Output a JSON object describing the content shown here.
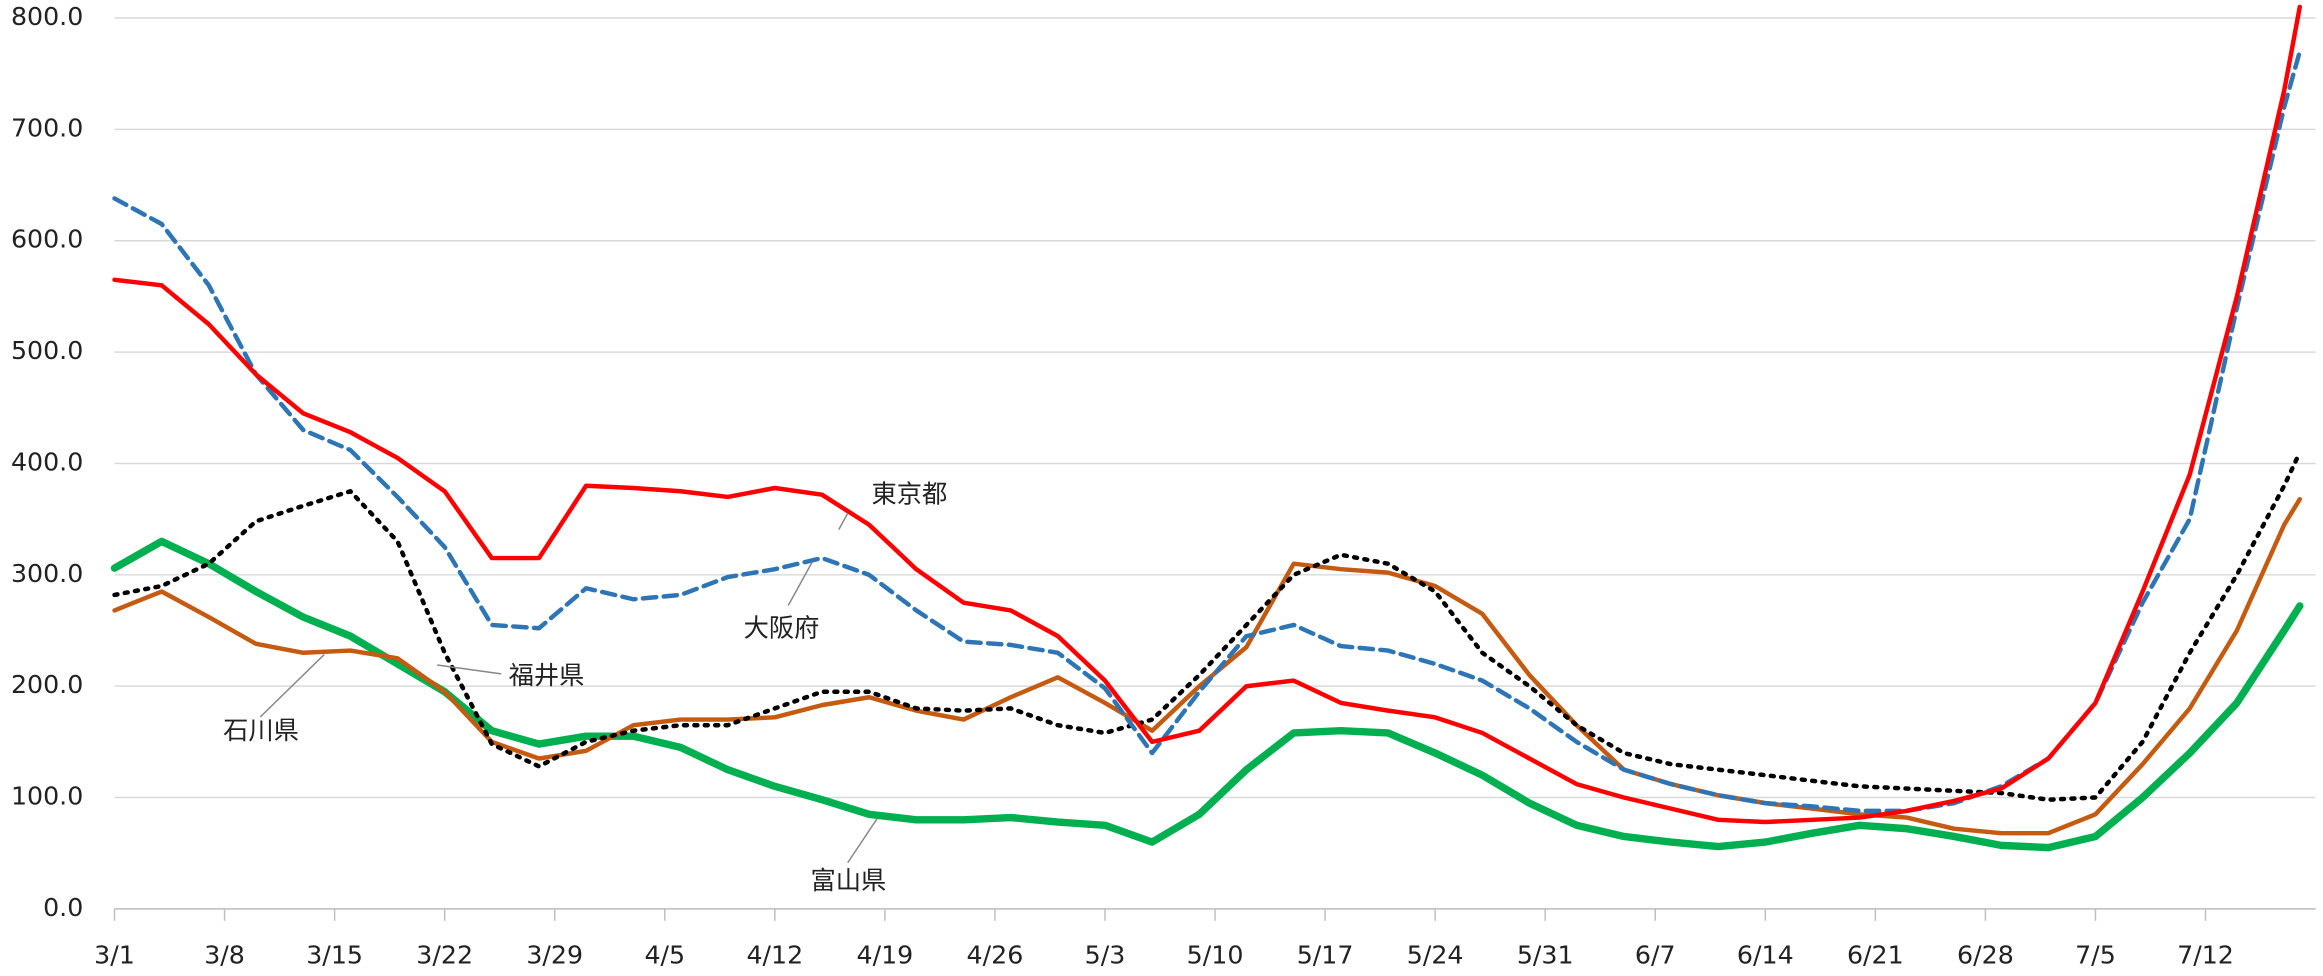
{
  "chart_data": {
    "type": "line",
    "x": [
      0,
      3,
      6,
      9,
      12,
      15,
      18,
      21,
      24,
      27,
      30,
      33,
      36,
      39,
      42,
      45,
      48,
      51,
      54,
      57,
      60,
      63,
      66,
      69,
      72,
      75,
      78,
      81,
      84,
      87,
      90,
      93,
      96,
      99,
      102,
      105,
      108,
      111,
      114,
      117,
      120,
      123,
      126,
      129,
      132,
      135,
      138,
      139
    ],
    "xlim": [
      0,
      140
    ],
    "xticks": [
      {
        "value": 0,
        "label": "3/1"
      },
      {
        "value": 7,
        "label": "3/8"
      },
      {
        "value": 14,
        "label": "3/15"
      },
      {
        "value": 21,
        "label": "3/22"
      },
      {
        "value": 28,
        "label": "3/29"
      },
      {
        "value": 35,
        "label": "4/5"
      },
      {
        "value": 42,
        "label": "4/12"
      },
      {
        "value": 49,
        "label": "4/19"
      },
      {
        "value": 56,
        "label": "4/26"
      },
      {
        "value": 63,
        "label": "5/3"
      },
      {
        "value": 70,
        "label": "5/10"
      },
      {
        "value": 77,
        "label": "5/17"
      },
      {
        "value": 84,
        "label": "5/24"
      },
      {
        "value": 91,
        "label": "5/31"
      },
      {
        "value": 98,
        "label": "6/7"
      },
      {
        "value": 105,
        "label": "6/14"
      },
      {
        "value": 112,
        "label": "6/21"
      },
      {
        "value": 119,
        "label": "6/28"
      },
      {
        "value": 126,
        "label": "7/5"
      },
      {
        "value": 133,
        "label": "7/12"
      }
    ],
    "ylim": [
      0,
      800
    ],
    "yticks": [
      {
        "value": 0,
        "label": "0.0"
      },
      {
        "value": 100,
        "label": "100.0"
      },
      {
        "value": 200,
        "label": "200.0"
      },
      {
        "value": 300,
        "label": "300.0"
      },
      {
        "value": 400,
        "label": "400.0"
      },
      {
        "value": 500,
        "label": "500.0"
      },
      {
        "value": 600,
        "label": "600.0"
      },
      {
        "value": 700,
        "label": "700.0"
      },
      {
        "value": 800,
        "label": "800.0"
      }
    ],
    "grid": true,
    "series": [
      {
        "name": "東京都",
        "color": "#ff0000",
        "line_style": "solid",
        "values": [
          565,
          560,
          525,
          480,
          445,
          428,
          405,
          375,
          315,
          315,
          380,
          378,
          375,
          370,
          378,
          372,
          345,
          305,
          275,
          268,
          245,
          205,
          150,
          160,
          200,
          205,
          185,
          178,
          172,
          158,
          135,
          112,
          100,
          90,
          80,
          78,
          80,
          82,
          88,
          97,
          108,
          135,
          185,
          285,
          390,
          550,
          735,
          810
        ]
      },
      {
        "name": "大阪府",
        "color": "#2e75b6",
        "line_style": "dashed",
        "values": [
          638,
          615,
          560,
          480,
          430,
          412,
          370,
          325,
          255,
          252,
          288,
          278,
          282,
          298,
          305,
          315,
          300,
          268,
          240,
          237,
          230,
          198,
          140,
          195,
          245,
          255,
          236,
          232,
          220,
          205,
          180,
          150,
          125,
          112,
          102,
          95,
          92,
          88,
          88,
          95,
          110,
          135,
          185,
          275,
          350,
          540,
          720,
          770
        ]
      },
      {
        "name": "福井県",
        "color": "#000000",
        "line_style": "dotted",
        "values": [
          282,
          290,
          310,
          348,
          362,
          375,
          330,
          230,
          148,
          128,
          150,
          160,
          165,
          165,
          180,
          195,
          195,
          180,
          178,
          180,
          165,
          158,
          170,
          210,
          255,
          300,
          318,
          310,
          285,
          230,
          200,
          165,
          140,
          130,
          125,
          120,
          115,
          110,
          108,
          106,
          104,
          98,
          100,
          150,
          230,
          300,
          380,
          410
        ]
      },
      {
        "name": "石川県",
        "color": "#c55a11",
        "line_style": "solid",
        "values": [
          268,
          285,
          262,
          238,
          230,
          232,
          225,
          195,
          150,
          135,
          142,
          165,
          170,
          170,
          172,
          183,
          190,
          178,
          170,
          190,
          208,
          185,
          160,
          200,
          235,
          310,
          305,
          302,
          290,
          265,
          210,
          165,
          125,
          112,
          102,
          95,
          90,
          85,
          82,
          72,
          68,
          68,
          85,
          130,
          180,
          250,
          345,
          368
        ]
      },
      {
        "name": "富山県",
        "color": "#00b050",
        "line_style": "thick",
        "values": [
          306,
          330,
          310,
          285,
          262,
          245,
          220,
          195,
          160,
          148,
          155,
          155,
          145,
          125,
          110,
          98,
          85,
          80,
          80,
          82,
          78,
          75,
          60,
          85,
          125,
          158,
          160,
          158,
          140,
          120,
          95,
          75,
          65,
          60,
          56,
          60,
          68,
          75,
          72,
          65,
          57,
          55,
          65,
          100,
          140,
          185,
          250,
          272
        ]
      }
    ]
  }
}
